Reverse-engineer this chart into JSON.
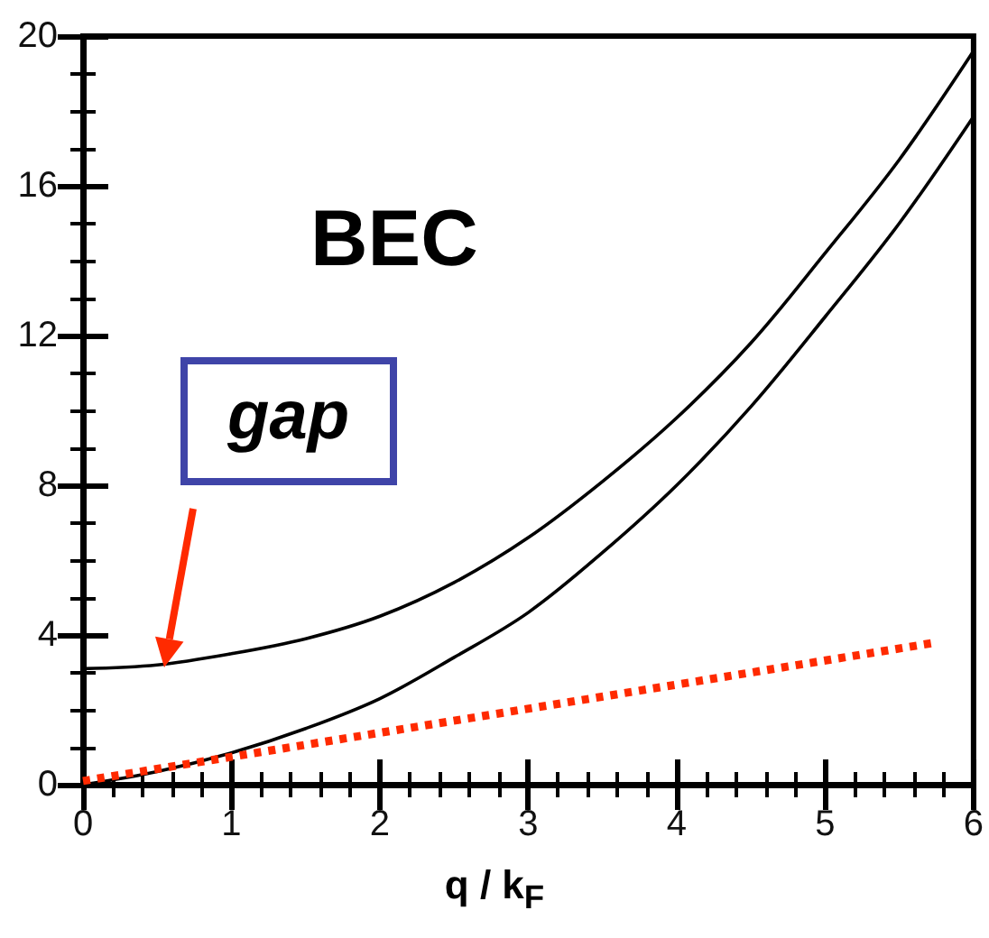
{
  "chart_data": {
    "type": "line",
    "xlabel": "q / k$_{F}$",
    "xlim": [
      0,
      6
    ],
    "xticks": [
      0,
      1,
      2,
      3,
      4,
      5,
      6
    ],
    "ylim": [
      0,
      20
    ],
    "yticks": [
      0,
      4,
      8,
      12,
      16,
      20
    ],
    "grid": false,
    "marker": "none",
    "annotations": [
      "BEC",
      "gap"
    ],
    "series": [
      {
        "color": "#000000",
        "x": [
          0,
          0.5,
          1,
          1.5,
          2,
          2.5,
          3,
          3.5,
          4,
          4.5,
          5,
          5.5,
          6
        ],
        "values": [
          3.1,
          3.2,
          3.5,
          3.9,
          4.5,
          5.4,
          6.6,
          8.1,
          9.8,
          11.8,
          14.2,
          16.7,
          19.6
        ],
        "line_style": "solid"
      },
      {
        "color": "#000000",
        "x": [
          0,
          0.5,
          1,
          1.5,
          2,
          2.5,
          3,
          3.5,
          4,
          4.5,
          5,
          5.5,
          6
        ],
        "values": [
          0,
          0.35,
          0.85,
          1.5,
          2.3,
          3.4,
          4.6,
          6.2,
          8.0,
          10.1,
          12.5,
          15.0,
          17.85
        ],
        "line_style": "solid"
      },
      {
        "color": "#ff2a00",
        "x": [
          0,
          5.75
        ],
        "values": [
          0.1,
          3.8
        ],
        "line_style": "dotted"
      }
    ]
  }
}
